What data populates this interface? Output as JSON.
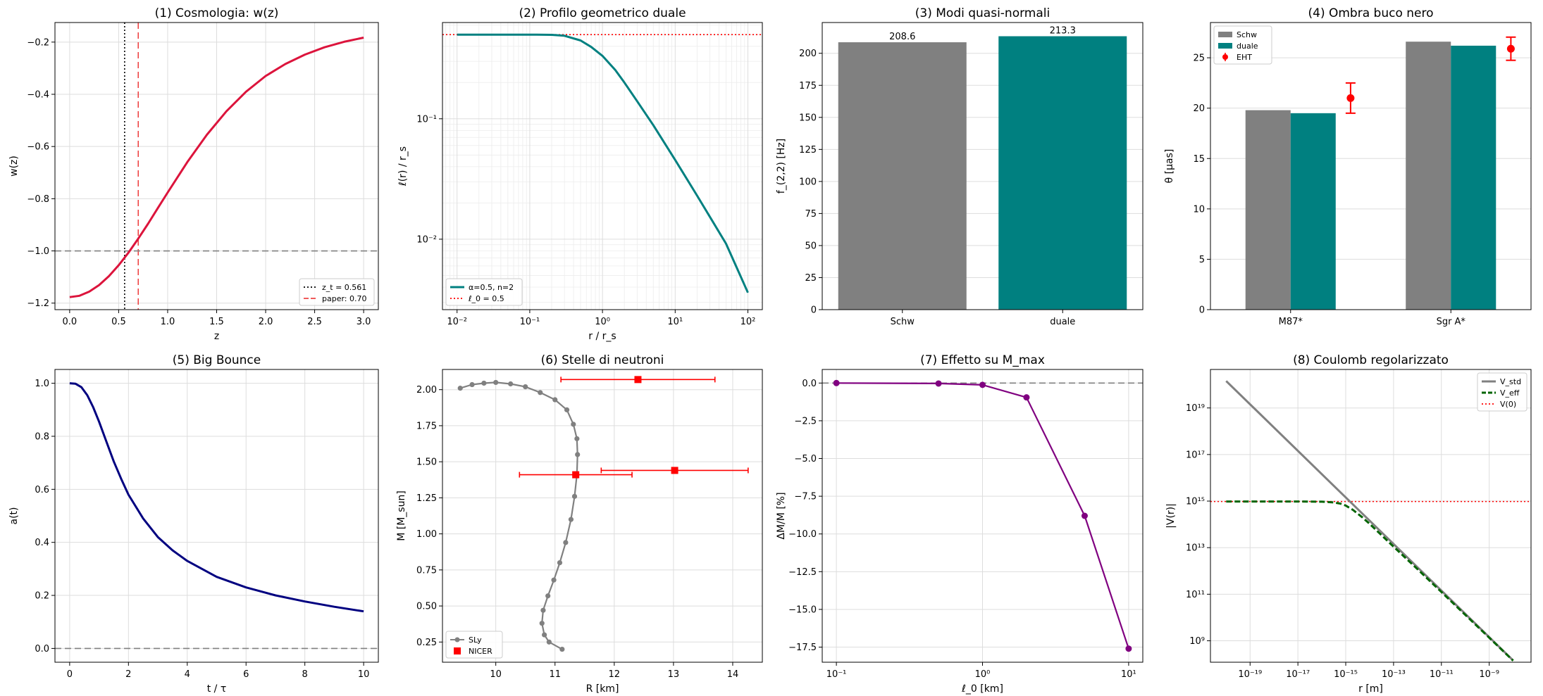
{
  "chart_data": [
    {
      "panel": 1,
      "type": "line",
      "title": "(1) Cosmologia: w(z)",
      "xlabel": "z",
      "ylabel": "w(z)",
      "xlim": [
        -0.15,
        3.15
      ],
      "ylim": [
        -1.225,
        -0.125
      ],
      "xticks": [
        0,
        0.5,
        1,
        1.5,
        2,
        2.5,
        3
      ],
      "xtick_labels": [
        "0.0",
        "0.5",
        "1.0",
        "1.5",
        "2.0",
        "2.5",
        "3.0"
      ],
      "yticks": [
        -1.2,
        -1.0,
        -0.8,
        -0.6,
        -0.4,
        -0.2
      ],
      "ytick_labels": [
        "−1.2",
        "−1.0",
        "−0.8",
        "−0.6",
        "−0.4",
        "−0.2"
      ],
      "grid": true,
      "legend_loc": "lower-right",
      "series": [
        {
          "color": "#dc143c",
          "x": [
            0,
            0.1,
            0.2,
            0.3,
            0.4,
            0.5,
            0.6,
            0.7,
            0.8,
            0.9,
            1.0,
            1.2,
            1.4,
            1.6,
            1.8,
            2.0,
            2.2,
            2.4,
            2.6,
            2.8,
            3.0
          ],
          "y": [
            -1.177,
            -1.172,
            -1.156,
            -1.131,
            -1.097,
            -1.055,
            -1.007,
            -0.953,
            -0.896,
            -0.836,
            -0.776,
            -0.66,
            -0.555,
            -0.465,
            -0.39,
            -0.33,
            -0.284,
            -0.248,
            -0.22,
            -0.199,
            -0.183
          ]
        }
      ],
      "lines": [
        {
          "orient": "v",
          "value": 0.561,
          "color": "#000000",
          "dash": "2,3",
          "label": "z_t = 0.561"
        },
        {
          "orient": "v",
          "value": 0.7,
          "color": "#ee4444",
          "dash": "9,5",
          "label": "paper: 0.70"
        },
        {
          "orient": "h",
          "value": -1.0,
          "color": "#808080",
          "dash": "9,5"
        }
      ]
    },
    {
      "panel": 2,
      "type": "line",
      "title": "(2) Profilo geometrico duale",
      "xlabel": "r / r_s",
      "ylabel": "ℓ(r) / r_s",
      "xscale": "log",
      "yscale": "log",
      "xlim": [
        0.0063,
        158
      ],
      "ylim": [
        0.0026,
        0.63
      ],
      "xticks": [
        0.01,
        0.1,
        1,
        10,
        100
      ],
      "xtick_labels": [
        "10⁻²",
        "10⁻¹",
        "10⁰",
        "10¹",
        "10²"
      ],
      "yticks": [
        0.01,
        0.1
      ],
      "ytick_labels": [
        "10⁻²",
        "10⁻¹"
      ],
      "grid": true,
      "legend_loc": "lower-left",
      "series": [
        {
          "color": "#008080",
          "label": "α=0.5, n=2",
          "x": [
            0.01,
            0.03,
            0.1,
            0.2,
            0.3,
            0.5,
            0.7,
            1,
            1.5,
            2,
            3,
            5,
            10,
            20,
            50,
            100
          ],
          "y": [
            0.5,
            0.5,
            0.4998,
            0.4975,
            0.489,
            0.447,
            0.395,
            0.333,
            0.254,
            0.2,
            0.14,
            0.0886,
            0.0455,
            0.023,
            0.0092,
            0.0036
          ]
        }
      ],
      "lines": [
        {
          "orient": "h",
          "value": 0.5,
          "color": "#ff0000",
          "dash": "2,3",
          "label": "ℓ_0 = 0.5"
        }
      ]
    },
    {
      "panel": 3,
      "type": "bar",
      "title": "(3) Modi quasi-normali",
      "xlabel": "",
      "ylabel": "f_(2,2) [Hz]",
      "categories": [
        "Schw",
        "duale"
      ],
      "values": [
        208.6,
        213.3
      ],
      "value_labels": [
        "208.6",
        "213.3"
      ],
      "colors": [
        "#808080",
        "#008080"
      ],
      "ylim": [
        0,
        224
      ],
      "yticks": [
        0,
        25,
        50,
        75,
        100,
        125,
        150,
        175,
        200
      ],
      "ytick_labels": [
        "0",
        "25",
        "50",
        "75",
        "100",
        "125",
        "150",
        "175",
        "200"
      ],
      "grid": true
    },
    {
      "panel": 4,
      "type": "bar",
      "title": "(4) Ombra buco nero",
      "xlabel": "",
      "ylabel": "θ [µas]",
      "categories": [
        "M87*",
        "Sgr A*"
      ],
      "series": [
        {
          "name": "Schw",
          "color": "#808080",
          "values": [
            19.8,
            26.6
          ]
        },
        {
          "name": "duale",
          "color": "#008080",
          "values": [
            19.5,
            26.2
          ]
        }
      ],
      "errorbars": {
        "name": "EHT",
        "color": "#ff0000",
        "values": [
          21.0,
          25.9
        ],
        "errors": [
          1.5,
          1.15
        ]
      },
      "ylim": [
        0,
        28.5
      ],
      "yticks": [
        0,
        5,
        10,
        15,
        20,
        25
      ],
      "ytick_labels": [
        "0",
        "5",
        "10",
        "15",
        "20",
        "25"
      ],
      "grid": true,
      "legend_loc": "top-left"
    },
    {
      "panel": 5,
      "type": "line",
      "title": "(5) Big Bounce",
      "xlabel": "t / τ",
      "ylabel": "a(t)",
      "xlim": [
        -0.5,
        10.5
      ],
      "ylim": [
        -0.052,
        1.052
      ],
      "xticks": [
        0,
        2,
        4,
        6,
        8,
        10
      ],
      "xtick_labels": [
        "0",
        "2",
        "4",
        "6",
        "8",
        "10"
      ],
      "yticks": [
        0,
        0.2,
        0.4,
        0.6,
        0.8,
        1.0
      ],
      "ytick_labels": [
        "0.0",
        "0.2",
        "0.4",
        "0.6",
        "0.8",
        "1.0"
      ],
      "grid": true,
      "series": [
        {
          "color": "#000080",
          "x": [
            0,
            0.2,
            0.4,
            0.6,
            0.8,
            1.0,
            1.25,
            1.5,
            1.75,
            2.0,
            2.5,
            3.0,
            3.5,
            4.0,
            5.0,
            6.0,
            7.0,
            8.0,
            9.0,
            10.0
          ],
          "y": [
            1.0,
            0.998,
            0.985,
            0.955,
            0.91,
            0.855,
            0.78,
            0.705,
            0.64,
            0.58,
            0.49,
            0.42,
            0.37,
            0.33,
            0.27,
            0.23,
            0.2,
            0.177,
            0.157,
            0.14
          ]
        }
      ],
      "lines": [
        {
          "orient": "h",
          "value": 0.0,
          "color": "#808080",
          "dash": "9,5"
        }
      ]
    },
    {
      "panel": 6,
      "type": "scatter",
      "title": "(6) Stelle di neutroni",
      "xlabel": "R [km]",
      "ylabel": "M [M_sun]",
      "xlim": [
        9.1,
        14.5
      ],
      "ylim": [
        0.11,
        2.14
      ],
      "xticks": [
        10,
        11,
        12,
        13,
        14
      ],
      "xtick_labels": [
        "10",
        "11",
        "12",
        "13",
        "14"
      ],
      "yticks": [
        0.25,
        0.5,
        0.75,
        1.0,
        1.25,
        1.5,
        1.75,
        2.0
      ],
      "ytick_labels": [
        "0.25",
        "0.50",
        "0.75",
        "1.00",
        "1.25",
        "1.50",
        "1.75",
        "2.00"
      ],
      "grid": true,
      "legend_loc": "lower-left",
      "series": [
        {
          "name": "SLy",
          "color": "#808080",
          "x": [
            11.12,
            10.9,
            10.82,
            10.78,
            10.8,
            10.88,
            10.98,
            11.08,
            11.18,
            11.27,
            11.33,
            11.37,
            11.38,
            11.37,
            11.31,
            11.2,
            11.0,
            10.75,
            10.5,
            10.25,
            10.0,
            9.8,
            9.6,
            9.4
          ],
          "y": [
            0.2,
            0.25,
            0.3,
            0.38,
            0.47,
            0.57,
            0.68,
            0.8,
            0.94,
            1.1,
            1.26,
            1.41,
            1.55,
            1.66,
            1.76,
            1.86,
            1.93,
            1.98,
            2.02,
            2.04,
            2.05,
            2.045,
            2.035,
            2.01
          ]
        }
      ],
      "errorbars": {
        "name": "NICER",
        "color": "#ff0000",
        "points": [
          {
            "x": 12.4,
            "y": 2.07,
            "xerr": [
              1.3,
              1.3
            ]
          },
          {
            "x": 11.35,
            "y": 1.41,
            "xerr": [
              0.95,
              0.95
            ]
          },
          {
            "x": 13.02,
            "y": 1.44,
            "xerr": [
              1.24,
              1.24
            ]
          }
        ]
      }
    },
    {
      "panel": 7,
      "type": "line",
      "title": "(7) Effetto su M_max",
      "xlabel": "ℓ_0 [km]",
      "ylabel": "ΔM/M [%]",
      "xscale": "log",
      "xlim": [
        0.08,
        12.5
      ],
      "ylim": [
        -18.5,
        0.9
      ],
      "xticks": [
        0.1,
        1,
        10
      ],
      "xtick_labels": [
        "10⁻¹",
        "10⁰",
        "10¹"
      ],
      "yticks": [
        -17.5,
        -15.0,
        -12.5,
        -10.0,
        -7.5,
        -5.0,
        -2.5,
        0.0
      ],
      "ytick_labels": [
        "−17.5",
        "−15.0",
        "−12.5",
        "−10.0",
        "−7.5",
        "−5.0",
        "−2.5",
        "0.0"
      ],
      "grid": true,
      "series": [
        {
          "color": "#800080",
          "x": [
            0.1,
            0.5,
            1.0,
            2.0,
            5.0,
            10.0
          ],
          "y": [
            0.0,
            -0.03,
            -0.12,
            -0.95,
            -8.8,
            -17.6
          ]
        }
      ],
      "lines": [
        {
          "orient": "h",
          "value": 0.0,
          "color": "#808080",
          "dash": "9,5"
        }
      ]
    },
    {
      "panel": 8,
      "type": "line",
      "title": "(8) Coulomb regolarizzato",
      "xlabel": "r [m]",
      "ylabel": "|V(r)|",
      "xscale": "log",
      "yscale": "log",
      "xlim": [
        2.2e-21,
        5.6e-08
      ],
      "ylim": [
        120000000.0,
        4.5e+20
      ],
      "xticks": [
        1e-19,
        1e-17,
        1e-15,
        1e-13,
        1e-11,
        1e-09
      ],
      "xtick_labels": [
        "10⁻¹⁹",
        "10⁻¹⁷",
        "10⁻¹⁵",
        "10⁻¹³",
        "10⁻¹¹",
        "10⁻⁹"
      ],
      "yticks": [
        1000000000.0,
        100000000000.0,
        10000000000000.0,
        1000000000000000.0,
        1e+17,
        1e+19
      ],
      "ytick_labels": [
        "10⁹",
        "10¹¹",
        "10¹³",
        "10¹⁵",
        "10¹⁷",
        "10¹⁹"
      ],
      "grid": true,
      "legend_loc": "top-right",
      "series": [
        {
          "name": "V_std",
          "color": "#808080",
          "x": [
            1e-20,
            1e-08
          ],
          "y": [
            1.44e+20,
            144000000.0
          ]
        },
        {
          "name": "V_eff",
          "color": "#006400",
          "dash": "8,4",
          "x": [
            1e-20,
            1e-18,
            1e-17,
            1e-16,
            3e-16,
            6e-16,
            1e-15,
            2e-15,
            5e-15,
            1e-14,
            1e-13,
            1e-12,
            1e-11,
            1e-10,
            1e-09,
            1e-08
          ],
          "y": [
            960000000000000.0,
            960000000000000.0,
            960000000000000.0,
            940000000000000.0,
            880000000000000.0,
            780000000000000.0,
            640000000000000.0,
            420000000000000.0,
            200000000000000.0,
            105000000000000.0,
            11000000000000.0,
            1200000000000.0,
            125000000000.0,
            13000000000.0,
            1350000000.0,
            140000000.0
          ]
        }
      ],
      "lines": [
        {
          "orient": "h",
          "value": 960000000000000.0,
          "color": "#ff0000",
          "dash": "2,3",
          "label": "V(0)"
        }
      ]
    }
  ]
}
